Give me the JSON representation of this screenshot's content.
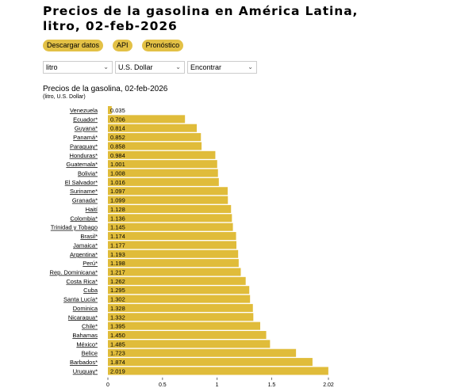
{
  "header": {
    "title": "Precios de la gasolina en América Latina, litro, 02-feb-2026"
  },
  "buttons": [
    "Descargar datos",
    "API",
    "Pronóstico"
  ],
  "selects": [
    {
      "value": "litro"
    },
    {
      "value": "U.S. Dollar"
    },
    {
      "value": "Encontrar"
    }
  ],
  "colors": {
    "bar": "#e0bc3a",
    "button": "#e3c146"
  },
  "chart_data": {
    "type": "bar",
    "orientation": "horizontal",
    "title": "Precios de la gasolina, 02-feb-2026",
    "subtitle": "(litro, U.S. Dollar)",
    "categories": [
      "Venezuela",
      "Ecuador*",
      "Guyana*",
      "Panamá*",
      "Paraguay*",
      "Honduras*",
      "Guatemala*",
      "Bolivia*",
      "El Salvador*",
      "Suriname*",
      "Granada*",
      "Haití",
      "Colombia*",
      "Trinidad y Tobago",
      "Brasil*",
      "Jamaica*",
      "Argentina*",
      "Perú*",
      "Rep. Dominicana*",
      "Costa Rica*",
      "Cuba",
      "Santa Lucía*",
      "Dominica",
      "Nicaragua*",
      "Chile*",
      "Bahamas",
      "México*",
      "Belice",
      "Barbados*",
      "Uruguay*"
    ],
    "values": [
      0.035,
      0.706,
      0.814,
      0.852,
      0.858,
      0.984,
      1.001,
      1.008,
      1.016,
      1.097,
      1.099,
      1.128,
      1.136,
      1.145,
      1.174,
      1.177,
      1.193,
      1.198,
      1.217,
      1.262,
      1.295,
      1.302,
      1.328,
      1.332,
      1.395,
      1.45,
      1.485,
      1.723,
      1.874,
      2.019
    ],
    "value_labels": [
      "0.035",
      "0.706",
      "0.814",
      "0.852",
      "0.858",
      "0.984",
      "1.001",
      "1.008",
      "1.016",
      "1.097",
      "1.099",
      "1.128",
      "1.136",
      "1.145",
      "1.174",
      "1.177",
      "1.193",
      "1.198",
      "1.217",
      "1.262",
      "1.295",
      "1.302",
      "1.328",
      "1.332",
      "1.395",
      "1.450",
      "1.485",
      "1.723",
      "1.874",
      "2.019"
    ],
    "xlim": [
      0,
      2.02
    ],
    "xticks": [
      "0",
      "0.5",
      "1",
      "1.5",
      "2.02"
    ],
    "xtick_values": [
      0,
      0.5,
      1,
      1.5,
      2.02
    ],
    "grid": false
  }
}
